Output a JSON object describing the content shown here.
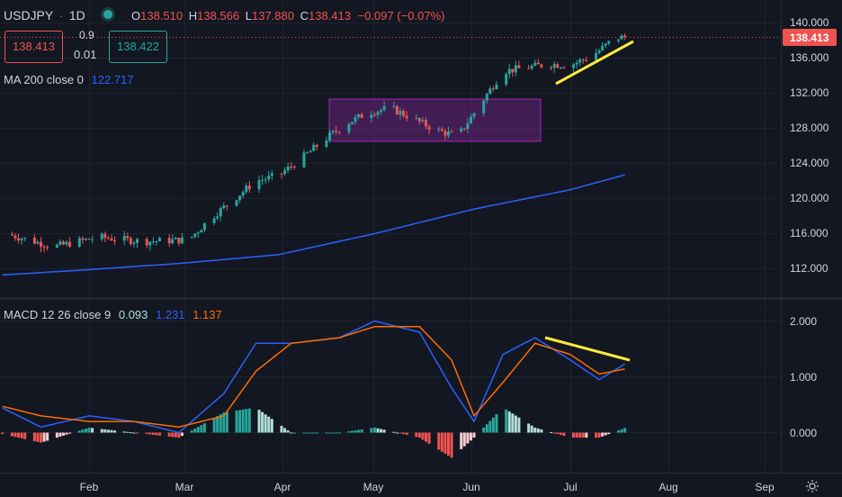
{
  "header": {
    "symbol": "USDJPY",
    "sep": "·",
    "interval": "1D",
    "o_label": "O",
    "o_value": "138.510",
    "h_label": "H",
    "h_value": "138.566",
    "l_label": "L",
    "l_value": "137.880",
    "c_label": "C",
    "c_value": "138.413",
    "change": "−0.097 (−0.07%)"
  },
  "trade_panel": {
    "sell_price": "138.413",
    "spread_top": "0.9",
    "lot": "0.01",
    "buy_price": "138.422"
  },
  "ma_legend": {
    "label": "MA 200 close 0",
    "value": "122.717"
  },
  "macd_legend": {
    "label": "MACD 12 26 close 9",
    "hist": "0.093",
    "macd": "1.231",
    "signal": "1.137"
  },
  "last_price_tag": "138.413",
  "colors": {
    "background": "#131722",
    "up": "#26a69a",
    "down": "#ef5350",
    "ma": "#2962ff",
    "macd": "#2962ff",
    "signal": "#ff6d00",
    "trendline": "#ffeb3b",
    "range_box": "#9c27b0"
  },
  "chart_data": [
    {
      "type": "line",
      "title": "USDJPY · 1D",
      "x_ticks": [
        "Feb",
        "Mar",
        "Apr",
        "May",
        "Jun",
        "Jul",
        "Aug",
        "Sep"
      ],
      "y_ticks": [
        "140.000",
        "136.000",
        "132.000",
        "128.000",
        "124.000",
        "120.000",
        "116.000",
        "112.000"
      ],
      "ylim": [
        109.5,
        141.8
      ],
      "series": [
        {
          "name": "USDJPY",
          "x": [
            "Jan 7",
            "Jan 21",
            "Feb 4",
            "Feb 18",
            "Mar 4",
            "Mar 11",
            "Mar 18",
            "Mar 25",
            "Apr 1",
            "Apr 8",
            "Apr 15",
            "Apr 22",
            "Apr 29",
            "May 6",
            "May 13",
            "May 20",
            "May 27",
            "Jun 3",
            "Jun 10",
            "Jun 17",
            "Jun 24",
            "Jul 1",
            "Jul 8",
            "Jul 15",
            "Jul 18"
          ],
          "values": [
            115.9,
            114.5,
            115.6,
            115.1,
            115.3,
            117.8,
            119.9,
            122.0,
            122.6,
            124.5,
            126.6,
            128.5,
            129.8,
            130.3,
            129.1,
            127.8,
            127.1,
            130.8,
            134.5,
            134.9,
            135.3,
            135.2,
            136.3,
            138.3,
            138.4
          ]
        },
        {
          "name": "MA 200 close 0",
          "x": [
            "Jan 1",
            "Feb 1",
            "Mar 1",
            "Apr 1",
            "May 1",
            "Jun 1",
            "Jul 1",
            "Jul 18"
          ],
          "values": [
            111.2,
            111.9,
            112.6,
            113.6,
            116.0,
            118.8,
            121.0,
            122.7
          ]
        }
      ],
      "annotations": [
        "Range box May–early Jun 126.4–131.2",
        "Rising trendline into Jul high"
      ]
    },
    {
      "type": "line",
      "title": "MACD 12 26 close 9",
      "y_ticks": [
        "2.000",
        "1.000",
        "0.000"
      ],
      "ylim": [
        -0.7,
        2.1
      ],
      "series": [
        {
          "name": "MACD",
          "x": [
            "Jan 3",
            "Jan 17",
            "Feb 1",
            "Feb 15",
            "Mar 1",
            "Mar 15",
            "Mar 25",
            "Apr 5",
            "Apr 20",
            "May 1",
            "May 15",
            "May 25",
            "Jun 1",
            "Jun 10",
            "Jun 20",
            "Jul 1",
            "Jul 10",
            "Jul 18"
          ],
          "values": [
            0.5,
            0.1,
            0.3,
            0.2,
            0.0,
            0.7,
            1.6,
            1.6,
            1.7,
            2.0,
            1.8,
            0.8,
            0.2,
            1.4,
            1.7,
            1.3,
            0.95,
            1.23
          ]
        },
        {
          "name": "Signal",
          "x": [
            "Jan 3",
            "Jan 17",
            "Feb 1",
            "Feb 15",
            "Mar 1",
            "Mar 15",
            "Mar 25",
            "Apr 5",
            "Apr 20",
            "May 1",
            "May 15",
            "May 25",
            "Jun 1",
            "Jun 10",
            "Jun 20",
            "Jul 1",
            "Jul 10",
            "Jul 18"
          ],
          "values": [
            0.5,
            0.3,
            0.2,
            0.2,
            0.1,
            0.3,
            1.1,
            1.6,
            1.7,
            1.9,
            1.9,
            1.3,
            0.3,
            0.9,
            1.6,
            1.4,
            1.05,
            1.14
          ]
        }
      ]
    }
  ]
}
